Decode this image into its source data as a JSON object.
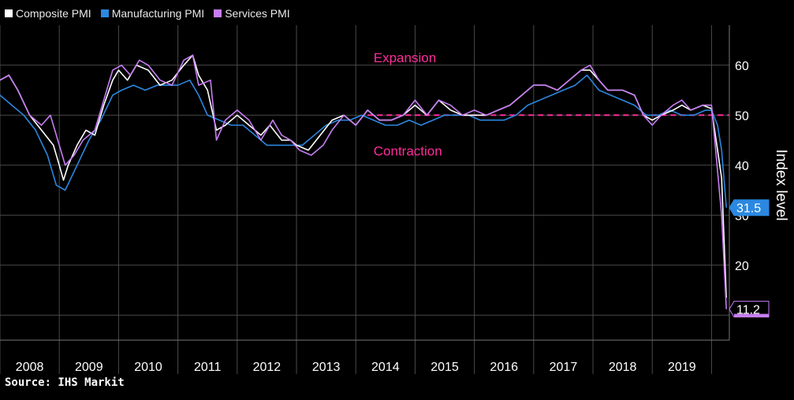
{
  "chart_data": {
    "type": "line",
    "xlabel": "",
    "ylabel": "Index level",
    "ylim": [
      5,
      68
    ],
    "xlim": [
      2008.0,
      2020.3
    ],
    "x_ticks": [
      "2008",
      "2009",
      "2010",
      "2011",
      "2012",
      "2013",
      "2014",
      "2015",
      "2016",
      "2017",
      "2018",
      "2019"
    ],
    "y_ticks": [
      20,
      30,
      40,
      50,
      60
    ],
    "reference_line": {
      "y": 50,
      "color": "#ff2d9b"
    },
    "annotations": [
      {
        "text": "Expansion",
        "x": 2014.3,
        "y": 60.6
      },
      {
        "text": "Contraction",
        "x": 2014.3,
        "y": 41.9
      }
    ],
    "last_value_labels": [
      {
        "text": "31.5",
        "value": 31.5,
        "series": "Manufacturing PMI"
      },
      {
        "text": "11.2",
        "value": 11.2,
        "series": "Services PMI"
      }
    ],
    "legend_position": "top-left",
    "series": [
      {
        "name": "Composite PMI",
        "color": "#ffffff",
        "points": [
          [
            2008.0,
            57
          ],
          [
            2008.15,
            58
          ],
          [
            2008.3,
            55
          ],
          [
            2008.5,
            50
          ],
          [
            2008.7,
            47
          ],
          [
            2008.9,
            44
          ],
          [
            2009.0,
            40
          ],
          [
            2009.07,
            37
          ],
          [
            2009.15,
            40
          ],
          [
            2009.3,
            44
          ],
          [
            2009.45,
            47
          ],
          [
            2009.6,
            46
          ],
          [
            2009.75,
            52
          ],
          [
            2009.9,
            57
          ],
          [
            2010.0,
            59
          ],
          [
            2010.15,
            57
          ],
          [
            2010.3,
            60
          ],
          [
            2010.5,
            59
          ],
          [
            2010.7,
            56
          ],
          [
            2010.9,
            57
          ],
          [
            2011.1,
            60
          ],
          [
            2011.25,
            62
          ],
          [
            2011.35,
            58
          ],
          [
            2011.5,
            55
          ],
          [
            2011.65,
            47
          ],
          [
            2011.8,
            48
          ],
          [
            2012.0,
            50
          ],
          [
            2012.2,
            48
          ],
          [
            2012.4,
            46
          ],
          [
            2012.55,
            48
          ],
          [
            2012.75,
            45
          ],
          [
            2012.9,
            45
          ],
          [
            2013.0,
            44
          ],
          [
            2013.2,
            43
          ],
          [
            2013.4,
            46
          ],
          [
            2013.6,
            49
          ],
          [
            2013.8,
            50
          ],
          [
            2014.0,
            48
          ],
          [
            2014.2,
            51
          ],
          [
            2014.4,
            49
          ],
          [
            2014.6,
            49
          ],
          [
            2014.8,
            50
          ],
          [
            2015.0,
            52
          ],
          [
            2015.2,
            50
          ],
          [
            2015.4,
            53
          ],
          [
            2015.6,
            51
          ],
          [
            2015.8,
            50
          ],
          [
            2016.0,
            50
          ],
          [
            2016.2,
            50
          ],
          [
            2016.4,
            51
          ],
          [
            2016.6,
            52
          ],
          [
            2016.8,
            54
          ],
          [
            2017.0,
            56
          ],
          [
            2017.2,
            56
          ],
          [
            2017.4,
            55
          ],
          [
            2017.6,
            57
          ],
          [
            2017.8,
            59
          ],
          [
            2017.95,
            59
          ],
          [
            2018.1,
            57
          ],
          [
            2018.25,
            55
          ],
          [
            2018.5,
            55
          ],
          [
            2018.7,
            54
          ],
          [
            2018.85,
            50
          ],
          [
            2019.0,
            49
          ],
          [
            2019.15,
            50
          ],
          [
            2019.35,
            51
          ],
          [
            2019.5,
            52
          ],
          [
            2019.65,
            51
          ],
          [
            2019.85,
            52
          ],
          [
            2020.0,
            51.3
          ],
          [
            2020.17,
            37.4
          ],
          [
            2020.25,
            13.5
          ]
        ]
      },
      {
        "name": "Manufacturing PMI",
        "color": "#2b88e0",
        "points": [
          [
            2008.0,
            54
          ],
          [
            2008.2,
            52
          ],
          [
            2008.4,
            50
          ],
          [
            2008.6,
            47
          ],
          [
            2008.8,
            42
          ],
          [
            2008.95,
            36
          ],
          [
            2009.1,
            35
          ],
          [
            2009.3,
            40
          ],
          [
            2009.5,
            45
          ],
          [
            2009.7,
            49
          ],
          [
            2009.9,
            54
          ],
          [
            2010.05,
            55
          ],
          [
            2010.25,
            56
          ],
          [
            2010.45,
            55
          ],
          [
            2010.65,
            56
          ],
          [
            2010.8,
            56
          ],
          [
            2011.0,
            56
          ],
          [
            2011.2,
            57
          ],
          [
            2011.35,
            54
          ],
          [
            2011.5,
            50
          ],
          [
            2011.7,
            49
          ],
          [
            2011.9,
            48
          ],
          [
            2012.1,
            48
          ],
          [
            2012.3,
            46
          ],
          [
            2012.5,
            44
          ],
          [
            2012.7,
            44
          ],
          [
            2012.9,
            44
          ],
          [
            2013.1,
            44
          ],
          [
            2013.3,
            46
          ],
          [
            2013.5,
            48
          ],
          [
            2013.7,
            49
          ],
          [
            2013.9,
            49
          ],
          [
            2014.1,
            50
          ],
          [
            2014.3,
            49
          ],
          [
            2014.5,
            48
          ],
          [
            2014.7,
            48
          ],
          [
            2014.9,
            49
          ],
          [
            2015.1,
            48
          ],
          [
            2015.3,
            49
          ],
          [
            2015.5,
            50
          ],
          [
            2015.7,
            50
          ],
          [
            2015.9,
            50
          ],
          [
            2016.1,
            49
          ],
          [
            2016.3,
            49
          ],
          [
            2016.5,
            49
          ],
          [
            2016.7,
            50
          ],
          [
            2016.9,
            52
          ],
          [
            2017.1,
            53
          ],
          [
            2017.3,
            54
          ],
          [
            2017.5,
            55
          ],
          [
            2017.7,
            56
          ],
          [
            2017.9,
            58
          ],
          [
            2018.1,
            55
          ],
          [
            2018.3,
            54
          ],
          [
            2018.5,
            53
          ],
          [
            2018.7,
            52
          ],
          [
            2018.9,
            50
          ],
          [
            2019.1,
            50
          ],
          [
            2019.3,
            51
          ],
          [
            2019.5,
            50
          ],
          [
            2019.7,
            50
          ],
          [
            2019.9,
            51
          ],
          [
            2020.0,
            51
          ],
          [
            2020.1,
            48
          ],
          [
            2020.17,
            43
          ],
          [
            2020.25,
            31.5
          ]
        ]
      },
      {
        "name": "Services PMI",
        "color": "#c77df3",
        "points": [
          [
            2008.0,
            57
          ],
          [
            2008.15,
            58
          ],
          [
            2008.3,
            55
          ],
          [
            2008.5,
            50
          ],
          [
            2008.7,
            48
          ],
          [
            2008.85,
            50
          ],
          [
            2009.0,
            44
          ],
          [
            2009.1,
            40
          ],
          [
            2009.25,
            42
          ],
          [
            2009.4,
            45
          ],
          [
            2009.6,
            47
          ],
          [
            2009.75,
            53
          ],
          [
            2009.9,
            59
          ],
          [
            2010.05,
            60
          ],
          [
            2010.2,
            58
          ],
          [
            2010.35,
            61
          ],
          [
            2010.5,
            60
          ],
          [
            2010.7,
            57
          ],
          [
            2010.9,
            56
          ],
          [
            2011.1,
            61
          ],
          [
            2011.25,
            62
          ],
          [
            2011.35,
            56
          ],
          [
            2011.55,
            57
          ],
          [
            2011.65,
            45
          ],
          [
            2011.8,
            49
          ],
          [
            2012.0,
            51
          ],
          [
            2012.2,
            49
          ],
          [
            2012.4,
            45
          ],
          [
            2012.6,
            49
          ],
          [
            2012.75,
            46
          ],
          [
            2012.9,
            45
          ],
          [
            2013.05,
            43
          ],
          [
            2013.25,
            42
          ],
          [
            2013.45,
            44
          ],
          [
            2013.6,
            47
          ],
          [
            2013.8,
            50
          ],
          [
            2014.0,
            48
          ],
          [
            2014.2,
            51
          ],
          [
            2014.4,
            49
          ],
          [
            2014.6,
            49
          ],
          [
            2014.8,
            50
          ],
          [
            2015.0,
            53
          ],
          [
            2015.2,
            50
          ],
          [
            2015.4,
            53
          ],
          [
            2015.6,
            52
          ],
          [
            2015.8,
            50
          ],
          [
            2016.0,
            51
          ],
          [
            2016.2,
            50
          ],
          [
            2016.4,
            51
          ],
          [
            2016.6,
            52
          ],
          [
            2016.8,
            54
          ],
          [
            2017.0,
            56
          ],
          [
            2017.2,
            56
          ],
          [
            2017.4,
            55
          ],
          [
            2017.6,
            57
          ],
          [
            2017.8,
            59
          ],
          [
            2017.95,
            60
          ],
          [
            2018.1,
            57
          ],
          [
            2018.25,
            55
          ],
          [
            2018.5,
            55
          ],
          [
            2018.7,
            54
          ],
          [
            2018.85,
            50
          ],
          [
            2019.0,
            48
          ],
          [
            2019.15,
            50
          ],
          [
            2019.35,
            52
          ],
          [
            2019.5,
            53
          ],
          [
            2019.65,
            51
          ],
          [
            2019.85,
            52
          ],
          [
            2020.0,
            52
          ],
          [
            2020.17,
            30
          ],
          [
            2020.25,
            11.2
          ]
        ]
      }
    ]
  },
  "source": "Source: IHS Markit"
}
